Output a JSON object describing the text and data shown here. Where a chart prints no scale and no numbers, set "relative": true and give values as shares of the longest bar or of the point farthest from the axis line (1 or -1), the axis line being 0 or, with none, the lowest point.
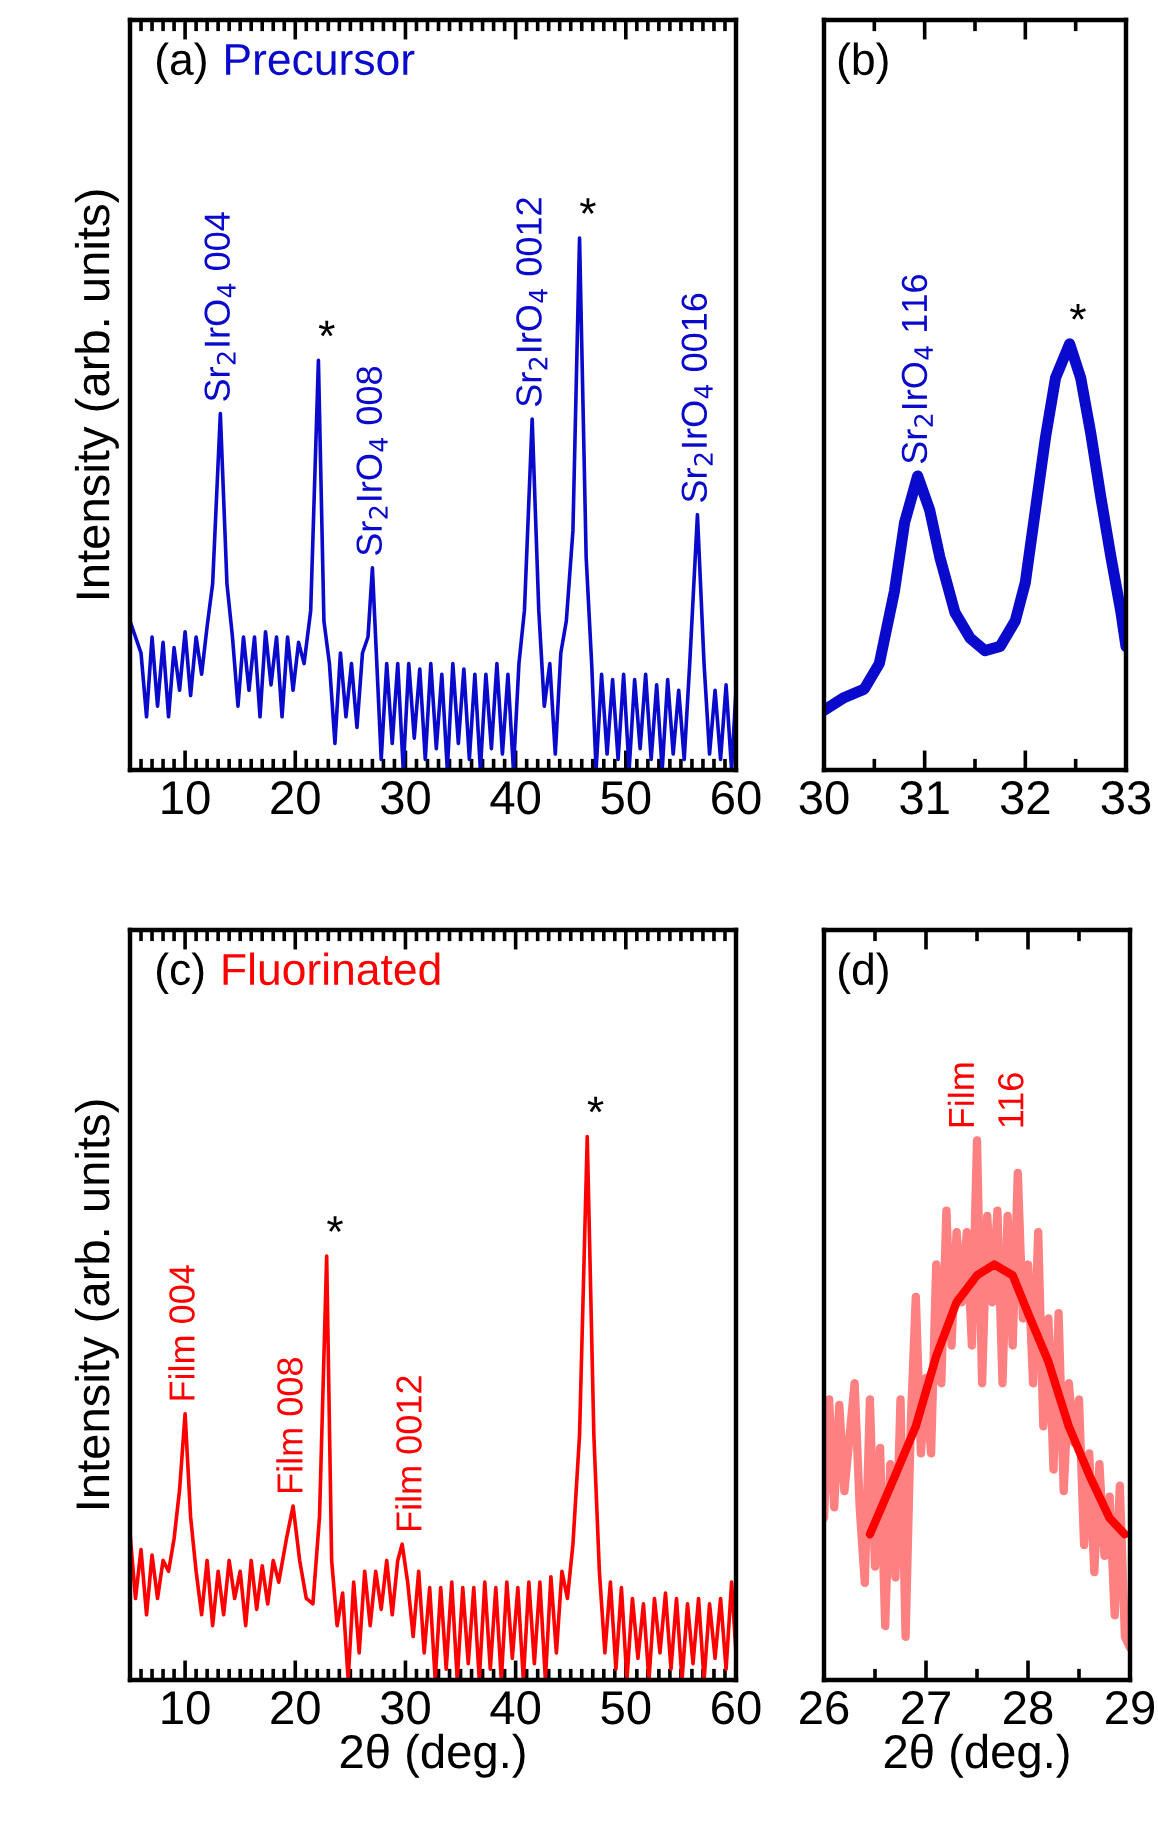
{
  "chart_data": [
    {
      "type": "line",
      "relative": true,
      "ylabel": "Intensity (arb. units)",
      "tick_labels": "x",
      "xlim": [
        5,
        60
      ],
      "xticks": [
        {
          "value": 5,
          "label": null
        },
        {
          "value": 6,
          "label": null
        },
        {
          "value": 7,
          "label": null
        },
        {
          "value": 8,
          "label": null
        },
        {
          "value": 9,
          "label": null
        },
        10,
        {
          "value": 11,
          "label": null
        },
        {
          "value": 12,
          "label": null
        },
        {
          "value": 13,
          "label": null
        },
        {
          "value": 14,
          "label": null
        },
        {
          "value": 15,
          "label": null
        },
        {
          "value": 16,
          "label": null
        },
        {
          "value": 17,
          "label": null
        },
        {
          "value": 18,
          "label": null
        },
        {
          "value": 19,
          "label": null
        },
        20,
        {
          "value": 21,
          "label": null
        },
        {
          "value": 22,
          "label": null
        },
        {
          "value": 23,
          "label": null
        },
        {
          "value": 24,
          "label": null
        },
        {
          "value": 25,
          "label": null
        },
        {
          "value": 26,
          "label": null
        },
        {
          "value": 27,
          "label": null
        },
        {
          "value": 28,
          "label": null
        },
        {
          "value": 29,
          "label": null
        },
        30,
        {
          "value": 31,
          "label": null
        },
        {
          "value": 32,
          "label": null
        },
        {
          "value": 33,
          "label": null
        },
        {
          "value": 34,
          "label": null
        },
        {
          "value": 35,
          "label": null
        },
        {
          "value": 36,
          "label": null
        },
        {
          "value": 37,
          "label": null
        },
        {
          "value": 38,
          "label": null
        },
        {
          "value": 39,
          "label": null
        },
        40,
        {
          "value": 41,
          "label": null
        },
        {
          "value": 42,
          "label": null
        },
        {
          "value": 43,
          "label": null
        },
        {
          "value": 44,
          "label": null
        },
        {
          "value": 45,
          "label": null
        },
        {
          "value": 46,
          "label": null
        },
        {
          "value": 47,
          "label": null
        },
        {
          "value": 48,
          "label": null
        },
        {
          "value": 49,
          "label": null
        },
        50,
        {
          "value": 51,
          "label": null
        },
        {
          "value": 52,
          "label": null
        },
        {
          "value": 53,
          "label": null
        },
        {
          "value": 54,
          "label": null
        },
        {
          "value": 55,
          "label": null
        },
        {
          "value": 56,
          "label": null
        },
        {
          "value": 57,
          "label": null
        },
        {
          "value": 58,
          "label": null
        },
        {
          "value": 59,
          "label": null
        },
        60
      ],
      "series": [
        {
          "name": "Precursor",
          "color": "#0a0acd",
          "x": [
            5,
            6,
            6.5,
            7,
            7.5,
            8,
            8.5,
            9,
            9.5,
            10,
            10.5,
            11,
            11.5,
            12,
            12.5,
            13.2,
            13.8,
            14.3,
            14.8,
            15.3,
            15.8,
            16.3,
            16.8,
            17.3,
            17.8,
            18.3,
            18.8,
            19.3,
            19.8,
            20.3,
            20.8,
            21.4,
            22.1,
            22.6,
            23.1,
            23.6,
            24.1,
            24.6,
            25.1,
            25.6,
            26.1,
            26.6,
            27.0,
            27.4,
            27.8,
            28.3,
            28.8,
            29.3,
            29.8,
            30.3,
            30.8,
            31.3,
            31.8,
            32.3,
            32.8,
            33.3,
            33.8,
            34.3,
            34.8,
            35.3,
            35.8,
            36.3,
            36.8,
            37.3,
            37.8,
            38.3,
            38.8,
            39.3,
            39.8,
            40.3,
            40.8,
            41.5,
            42.1,
            42.6,
            43.1,
            43.6,
            44.1,
            44.6,
            45.2,
            45.8,
            46.4,
            46.9,
            47.3,
            47.8,
            48.3,
            48.8,
            49.3,
            49.8,
            50.3,
            50.8,
            51.3,
            51.8,
            52.3,
            52.8,
            53.3,
            53.8,
            54.3,
            54.8,
            55.3,
            55.8,
            56.5,
            57.1,
            57.6,
            58.1,
            58.6,
            59.1,
            59.6,
            60
          ],
          "values": [
            0.28,
            0.22,
            0.1,
            0.25,
            0.12,
            0.24,
            0.1,
            0.23,
            0.15,
            0.26,
            0.14,
            0.25,
            0.18,
            0.27,
            0.35,
            0.67,
            0.35,
            0.25,
            0.12,
            0.25,
            0.15,
            0.25,
            0.1,
            0.26,
            0.16,
            0.25,
            0.1,
            0.25,
            0.15,
            0.24,
            0.2,
            0.3,
            0.77,
            0.28,
            0.2,
            0.05,
            0.22,
            0.1,
            0.2,
            0.08,
            0.22,
            0.25,
            0.38,
            0.2,
            0.02,
            0.2,
            0.05,
            0.2,
            0.0,
            0.2,
            0.06,
            0.19,
            0.02,
            0.2,
            0.04,
            0.18,
            0.0,
            0.2,
            0.05,
            0.19,
            0.02,
            0.18,
            0.0,
            0.18,
            0.04,
            0.2,
            0.03,
            0.18,
            0.0,
            0.2,
            0.3,
            0.66,
            0.3,
            0.12,
            0.2,
            0.03,
            0.22,
            0.28,
            0.45,
            1.0,
            0.4,
            0.2,
            0.0,
            0.18,
            0.03,
            0.17,
            0.02,
            0.18,
            0.0,
            0.17,
            0.04,
            0.18,
            0.02,
            0.16,
            0.0,
            0.17,
            0.03,
            0.15,
            0.02,
            0.2,
            0.48,
            0.2,
            0.03,
            0.15,
            0.02,
            0.16,
            0.0,
            0.15
          ]
        }
      ],
      "annotations": [
        "(a)",
        {
          "text": "Sr$_{2}$IrO$_{4}$ 004",
          "x": 13.2,
          "y": 0.67
        },
        {
          "text": "*",
          "x": 22.1,
          "y": 0.77
        },
        {
          "text": "Sr$_{2}$IrO$_{4}$ 008",
          "x": 27.0,
          "y": 0.38
        },
        {
          "text": "Sr$_{2}$IrO$_{4}$ 0012",
          "x": 41.5,
          "y": 0.66
        },
        {
          "text": "*",
          "x": 45.8,
          "y": 1.0
        },
        {
          "text": "Sr$_{2}$IrO$_{4}$ 0016",
          "x": 56.5,
          "y": 0.48
        }
      ]
    },
    {
      "type": "line",
      "relative": true,
      "tick_labels": "x",
      "xlim": [
        30,
        33
      ],
      "xticks": [
        30,
        {
          "value": 30.5,
          "label": null
        },
        31,
        {
          "value": 31.5,
          "label": null
        },
        32,
        {
          "value": 32.5,
          "label": null
        },
        33
      ],
      "series": [
        {
          "color": "#0a0acd",
          "x": [
            30,
            30.2,
            30.4,
            30.55,
            30.7,
            30.8,
            30.93,
            31.05,
            31.15,
            31.3,
            31.45,
            31.6,
            31.75,
            31.9,
            32.0,
            32.1,
            32.2,
            32.3,
            32.44,
            32.55,
            32.65,
            32.75,
            32.85,
            32.95,
            33
          ],
          "values": [
            0.14,
            0.17,
            0.19,
            0.25,
            0.42,
            0.58,
            0.69,
            0.61,
            0.5,
            0.37,
            0.31,
            0.28,
            0.29,
            0.35,
            0.44,
            0.61,
            0.78,
            0.92,
            1.0,
            0.92,
            0.79,
            0.64,
            0.5,
            0.37,
            0.29
          ]
        }
      ],
      "annotations": [
        "(b)",
        {
          "text": "Sr$_{2}$IrO$_{4}$ 116",
          "x": 30.93,
          "y": 0.69
        },
        {
          "text": "*",
          "x": 32.44,
          "y": 1.0
        }
      ]
    },
    {
      "type": "line",
      "relative": true,
      "ylabel": "Intensity (arb. units)",
      "xlabel": "2θ (deg.)",
      "tick_labels": "x",
      "xlim": [
        5,
        60
      ],
      "xticks": [
        {
          "value": 5,
          "label": null
        },
        {
          "value": 6,
          "label": null
        },
        {
          "value": 7,
          "label": null
        },
        {
          "value": 8,
          "label": null
        },
        {
          "value": 9,
          "label": null
        },
        10,
        {
          "value": 11,
          "label": null
        },
        {
          "value": 12,
          "label": null
        },
        {
          "value": 13,
          "label": null
        },
        {
          "value": 14,
          "label": null
        },
        {
          "value": 15,
          "label": null
        },
        {
          "value": 16,
          "label": null
        },
        {
          "value": 17,
          "label": null
        },
        {
          "value": 18,
          "label": null
        },
        {
          "value": 19,
          "label": null
        },
        20,
        {
          "value": 21,
          "label": null
        },
        {
          "value": 22,
          "label": null
        },
        {
          "value": 23,
          "label": null
        },
        {
          "value": 24,
          "label": null
        },
        {
          "value": 25,
          "label": null
        },
        {
          "value": 26,
          "label": null
        },
        {
          "value": 27,
          "label": null
        },
        {
          "value": 28,
          "label": null
        },
        {
          "value": 29,
          "label": null
        },
        30,
        {
          "value": 31,
          "label": null
        },
        {
          "value": 32,
          "label": null
        },
        {
          "value": 33,
          "label": null
        },
        {
          "value": 34,
          "label": null
        },
        {
          "value": 35,
          "label": null
        },
        {
          "value": 36,
          "label": null
        },
        {
          "value": 37,
          "label": null
        },
        {
          "value": 38,
          "label": null
        },
        {
          "value": 39,
          "label": null
        },
        40,
        {
          "value": 41,
          "label": null
        },
        {
          "value": 42,
          "label": null
        },
        {
          "value": 43,
          "label": null
        },
        {
          "value": 44,
          "label": null
        },
        {
          "value": 45,
          "label": null
        },
        {
          "value": 46,
          "label": null
        },
        {
          "value": 47,
          "label": null
        },
        {
          "value": 48,
          "label": null
        },
        {
          "value": 49,
          "label": null
        },
        50,
        {
          "value": 51,
          "label": null
        },
        {
          "value": 52,
          "label": null
        },
        {
          "value": 53,
          "label": null
        },
        {
          "value": 54,
          "label": null
        },
        {
          "value": 55,
          "label": null
        },
        {
          "value": 56,
          "label": null
        },
        {
          "value": 57,
          "label": null
        },
        {
          "value": 58,
          "label": null
        },
        {
          "value": 59,
          "label": null
        },
        60
      ],
      "series": [
        {
          "name": "Fluorinated",
          "color": "#ff0000",
          "x": [
            5,
            5.5,
            6,
            6.5,
            7,
            7.5,
            8,
            8.5,
            9,
            9.5,
            10,
            10.5,
            11,
            11.5,
            12,
            12.5,
            13,
            13.5,
            14,
            14.5,
            15,
            15.5,
            16,
            16.5,
            17,
            17.5,
            18,
            18.5,
            19.2,
            19.8,
            20.4,
            21,
            21.6,
            22.2,
            22.85,
            23.3,
            23.8,
            24.3,
            24.8,
            25.3,
            25.8,
            26.3,
            26.8,
            27.3,
            27.8,
            28.3,
            28.8,
            29.3,
            29.7,
            30.2,
            30.7,
            31.2,
            31.7,
            32.2,
            32.7,
            33.2,
            33.7,
            34.2,
            34.7,
            35.2,
            35.7,
            36.2,
            36.7,
            37.2,
            37.7,
            38.2,
            38.7,
            39.2,
            39.7,
            40.2,
            40.7,
            41.2,
            41.7,
            42.2,
            42.7,
            43.2,
            43.7,
            44.2,
            44.7,
            45.2,
            45.8,
            46.5,
            47.1,
            47.6,
            48.1,
            48.6,
            49.1,
            49.6,
            50.1,
            50.6,
            51.1,
            51.6,
            52.1,
            52.6,
            53.1,
            53.6,
            54.1,
            54.6,
            55.1,
            55.6,
            56.1,
            56.6,
            57.1,
            57.6,
            58.1,
            58.6,
            59.1,
            59.6,
            60
          ],
          "values": [
            0.27,
            0.15,
            0.24,
            0.12,
            0.23,
            0.15,
            0.22,
            0.2,
            0.26,
            0.35,
            0.49,
            0.3,
            0.2,
            0.12,
            0.22,
            0.1,
            0.2,
            0.12,
            0.22,
            0.15,
            0.2,
            0.1,
            0.22,
            0.13,
            0.21,
            0.14,
            0.22,
            0.18,
            0.26,
            0.32,
            0.22,
            0.15,
            0.14,
            0.3,
            0.78,
            0.22,
            0.1,
            0.16,
            0.0,
            0.18,
            0.05,
            0.2,
            0.1,
            0.2,
            0.13,
            0.22,
            0.12,
            0.22,
            0.25,
            0.18,
            0.08,
            0.2,
            0.05,
            0.17,
            0.0,
            0.17,
            0.02,
            0.18,
            0.0,
            0.17,
            0.03,
            0.17,
            0.0,
            0.18,
            0.02,
            0.17,
            0.0,
            0.18,
            0.04,
            0.17,
            0.0,
            0.18,
            0.03,
            0.18,
            0.0,
            0.19,
            0.05,
            0.2,
            0.15,
            0.25,
            0.45,
            1.0,
            0.45,
            0.2,
            0.05,
            0.18,
            0.02,
            0.17,
            0.0,
            0.15,
            0.04,
            0.14,
            0.0,
            0.15,
            0.05,
            0.16,
            0.02,
            0.15,
            0.0,
            0.14,
            0.03,
            0.15,
            0.0,
            0.14,
            0.04,
            0.15,
            0.02,
            0.18,
            0.05
          ]
        }
      ],
      "annotations": [
        "(c)",
        {
          "text": "Film 004",
          "x": 10.0,
          "y": 0.49
        },
        {
          "text": "Film 008",
          "x": 19.8,
          "y": 0.32
        },
        {
          "text": "*",
          "x": 22.85,
          "y": 0.78
        },
        {
          "text": "Film 0012",
          "x": 30.6,
          "y": 0.25
        },
        {
          "text": "*",
          "x": 46.5,
          "y": 1.0
        }
      ]
    },
    {
      "type": "line",
      "relative": true,
      "xlabel": "2θ (deg.)",
      "tick_labels": "x",
      "xlim": [
        26,
        29
      ],
      "xticks": [
        {
          "value": 26.5,
          "label": null
        },
        27,
        {
          "value": 27.5,
          "label": null
        },
        28,
        {
          "value": 28.5,
          "label": null
        },
        {
          "value": 26,
          "label": "26"
        },
        {
          "value": 29,
          "label": "29"
        }
      ],
      "series": [
        {
          "color": "#ff8080",
          "x": [
            26.0,
            26.05,
            26.1,
            26.15,
            26.2,
            26.3,
            26.35,
            26.4,
            26.45,
            26.5,
            26.55,
            26.6,
            26.65,
            26.7,
            26.75,
            26.8,
            26.85,
            26.9,
            26.95,
            27.0,
            27.05,
            27.1,
            27.15,
            27.2,
            27.25,
            27.3,
            27.35,
            27.4,
            27.45,
            27.5,
            27.55,
            27.6,
            27.65,
            27.7,
            27.75,
            27.8,
            27.85,
            27.9,
            27.95,
            28.0,
            28.05,
            28.1,
            28.15,
            28.2,
            28.25,
            28.3,
            28.35,
            28.4,
            28.45,
            28.5,
            28.55,
            28.6,
            28.65,
            28.7,
            28.75,
            28.8,
            28.85,
            28.9,
            28.95,
            29.0
          ],
          "values": [
            0.3,
            0.52,
            0.32,
            0.51,
            0.35,
            0.55,
            0.32,
            0.18,
            0.52,
            0.21,
            0.43,
            0.1,
            0.4,
            0.19,
            0.52,
            0.08,
            0.47,
            0.71,
            0.42,
            0.56,
            0.42,
            0.77,
            0.55,
            0.87,
            0.62,
            0.83,
            0.7,
            0.83,
            0.62,
            1.0,
            0.55,
            0.86,
            0.7,
            0.87,
            0.55,
            0.86,
            0.62,
            0.94,
            0.67,
            0.77,
            0.55,
            0.83,
            0.47,
            0.67,
            0.39,
            0.68,
            0.35,
            0.55,
            0.44,
            0.52,
            0.25,
            0.42,
            0.2,
            0.4,
            0.23,
            0.34,
            0.12,
            0.36,
            0.08,
            0.06
          ]
        },
        {
          "color": "#ff0000",
          "x": [
            26.45,
            26.7,
            26.9,
            27.1,
            27.3,
            27.5,
            27.67,
            27.85,
            28.0,
            28.2,
            28.4,
            28.6,
            28.8,
            28.95
          ],
          "values": [
            0.27,
            0.38,
            0.47,
            0.6,
            0.7,
            0.75,
            0.77,
            0.75,
            0.68,
            0.59,
            0.47,
            0.38,
            0.3,
            0.27
          ]
        }
      ],
      "annotations": [
        "(d)",
        {
          "text": "Film\n116",
          "x": 27.62,
          "y": 1.0
        }
      ]
    }
  ]
}
